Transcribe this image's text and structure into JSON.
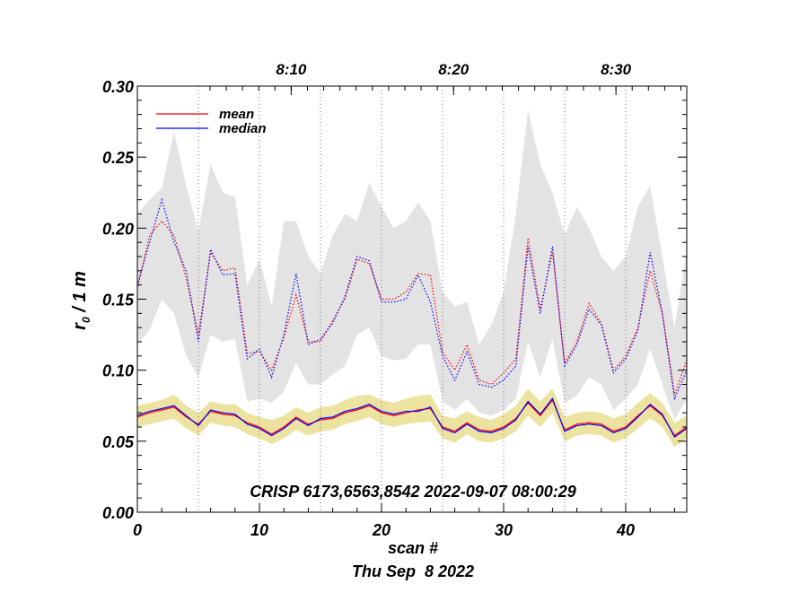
{
  "chart_data": {
    "type": "line",
    "title": "",
    "xlabel": "scan #",
    "ylabel": "r0 / 1 m",
    "ylabel_base": "r",
    "ylabel_sub": "0",
    "ylabel_rest": " / 1 m",
    "date_label": "Thu Sep  8 2022",
    "annotation": "CRISP 6173,6563,8542 2022-09-07 08:00:29",
    "xlim": [
      0,
      45
    ],
    "ylim": [
      0,
      0.3
    ],
    "x_ticks": [
      0,
      10,
      20,
      30,
      40
    ],
    "y_ticks": [
      "0.00",
      "0.05",
      "0.10",
      "0.15",
      "0.20",
      "0.25",
      "0.30"
    ],
    "time_ticks": [
      {
        "label": "8:10",
        "x": 12.6
      },
      {
        "label": "8:20",
        "x": 25.9
      },
      {
        "label": "8:30",
        "x": 39.2
      }
    ],
    "vgrid_x": [
      5,
      10,
      15,
      20,
      25,
      30,
      35,
      40
    ],
    "x": [
      0,
      1,
      2,
      3,
      4,
      5,
      6,
      7,
      8,
      9,
      10,
      11,
      12,
      13,
      14,
      15,
      16,
      17,
      18,
      19,
      20,
      21,
      22,
      23,
      24,
      25,
      26,
      27,
      28,
      29,
      30,
      31,
      32,
      33,
      34,
      35,
      36,
      37,
      38,
      39,
      40,
      41,
      42,
      43,
      44,
      45
    ],
    "legend": [
      {
        "name": "mean",
        "color": "#ff0000"
      },
      {
        "name": "median",
        "color": "#0000ff"
      }
    ],
    "series": [
      {
        "name": "mean upper",
        "group": "upper",
        "color": "#ff0000",
        "style": "dotted",
        "values": [
          0.157,
          0.195,
          0.205,
          0.195,
          0.165,
          0.125,
          0.183,
          0.17,
          0.172,
          0.112,
          0.113,
          0.1,
          0.123,
          0.153,
          0.12,
          0.12,
          0.135,
          0.15,
          0.178,
          0.175,
          0.15,
          0.15,
          0.155,
          0.168,
          0.167,
          0.113,
          0.1,
          0.118,
          0.093,
          0.09,
          0.098,
          0.108,
          0.193,
          0.143,
          0.183,
          0.105,
          0.12,
          0.147,
          0.133,
          0.1,
          0.11,
          0.13,
          0.17,
          0.14,
          0.083,
          0.107
        ]
      },
      {
        "name": "median upper",
        "group": "upper",
        "color": "#0000ff",
        "style": "dotted",
        "values": [
          0.16,
          0.19,
          0.22,
          0.19,
          0.17,
          0.12,
          0.185,
          0.167,
          0.168,
          0.108,
          0.115,
          0.095,
          0.125,
          0.168,
          0.118,
          0.122,
          0.133,
          0.152,
          0.18,
          0.177,
          0.148,
          0.148,
          0.15,
          0.167,
          0.148,
          0.11,
          0.093,
          0.113,
          0.09,
          0.088,
          0.093,
          0.103,
          0.187,
          0.14,
          0.187,
          0.103,
          0.118,
          0.143,
          0.132,
          0.098,
          0.108,
          0.128,
          0.183,
          0.14,
          0.08,
          0.1
        ]
      },
      {
        "name": "mean lower",
        "group": "lower",
        "color": "#ff0000",
        "style": "solid",
        "values": [
          0.067,
          0.07,
          0.072,
          0.074,
          0.067,
          0.062,
          0.071,
          0.069,
          0.068,
          0.063,
          0.06,
          0.055,
          0.06,
          0.067,
          0.062,
          0.065,
          0.066,
          0.07,
          0.072,
          0.075,
          0.07,
          0.068,
          0.07,
          0.072,
          0.073,
          0.06,
          0.057,
          0.063,
          0.058,
          0.057,
          0.06,
          0.066,
          0.077,
          0.068,
          0.079,
          0.058,
          0.062,
          0.063,
          0.062,
          0.057,
          0.06,
          0.068,
          0.075,
          0.068,
          0.054,
          0.06
        ]
      },
      {
        "name": "median lower",
        "group": "lower",
        "color": "#0000ff",
        "style": "solid",
        "values": [
          0.068,
          0.071,
          0.073,
          0.075,
          0.068,
          0.061,
          0.072,
          0.07,
          0.069,
          0.062,
          0.059,
          0.054,
          0.059,
          0.066,
          0.061,
          0.066,
          0.067,
          0.071,
          0.073,
          0.076,
          0.071,
          0.069,
          0.071,
          0.071,
          0.074,
          0.059,
          0.056,
          0.062,
          0.057,
          0.056,
          0.059,
          0.065,
          0.078,
          0.069,
          0.08,
          0.057,
          0.061,
          0.062,
          0.061,
          0.056,
          0.059,
          0.067,
          0.076,
          0.069,
          0.053,
          0.059
        ]
      }
    ],
    "bands": [
      {
        "name": "upper range",
        "color": "#e3e3e3",
        "upper": [
          0.21,
          0.22,
          0.228,
          0.268,
          0.23,
          0.198,
          0.245,
          0.225,
          0.222,
          0.16,
          0.178,
          0.145,
          0.205,
          0.205,
          0.18,
          0.168,
          0.195,
          0.21,
          0.205,
          0.232,
          0.215,
          0.2,
          0.205,
          0.218,
          0.205,
          0.155,
          0.145,
          0.148,
          0.118,
          0.132,
          0.155,
          0.21,
          0.283,
          0.245,
          0.225,
          0.195,
          0.215,
          0.2,
          0.18,
          0.17,
          0.18,
          0.215,
          0.23,
          0.18,
          0.13,
          0.185
        ],
        "lower": [
          0.118,
          0.128,
          0.15,
          0.14,
          0.11,
          0.095,
          0.125,
          0.12,
          0.122,
          0.078,
          0.08,
          0.077,
          0.085,
          0.105,
          0.09,
          0.09,
          0.097,
          0.103,
          0.125,
          0.13,
          0.11,
          0.107,
          0.108,
          0.118,
          0.118,
          0.078,
          0.072,
          0.08,
          0.07,
          0.068,
          0.072,
          0.08,
          0.12,
          0.095,
          0.122,
          0.077,
          0.082,
          0.095,
          0.09,
          0.072,
          0.08,
          0.09,
          0.115,
          0.09,
          0.065,
          0.08
        ]
      },
      {
        "name": "lower range",
        "color": "#ede3a0",
        "upper": [
          0.075,
          0.077,
          0.079,
          0.083,
          0.075,
          0.07,
          0.078,
          0.076,
          0.076,
          0.07,
          0.067,
          0.065,
          0.068,
          0.074,
          0.07,
          0.074,
          0.075,
          0.079,
          0.082,
          0.083,
          0.079,
          0.077,
          0.08,
          0.082,
          0.083,
          0.068,
          0.066,
          0.071,
          0.067,
          0.065,
          0.069,
          0.075,
          0.087,
          0.078,
          0.087,
          0.067,
          0.07,
          0.071,
          0.07,
          0.066,
          0.069,
          0.077,
          0.084,
          0.077,
          0.063,
          0.068
        ],
        "lower": [
          0.06,
          0.062,
          0.064,
          0.066,
          0.059,
          0.054,
          0.063,
          0.061,
          0.06,
          0.055,
          0.052,
          0.048,
          0.052,
          0.058,
          0.054,
          0.057,
          0.058,
          0.062,
          0.064,
          0.067,
          0.062,
          0.06,
          0.062,
          0.063,
          0.064,
          0.052,
          0.049,
          0.055,
          0.05,
          0.049,
          0.052,
          0.057,
          0.068,
          0.06,
          0.07,
          0.05,
          0.054,
          0.055,
          0.054,
          0.049,
          0.052,
          0.059,
          0.066,
          0.06,
          0.046,
          0.052
        ]
      }
    ]
  }
}
